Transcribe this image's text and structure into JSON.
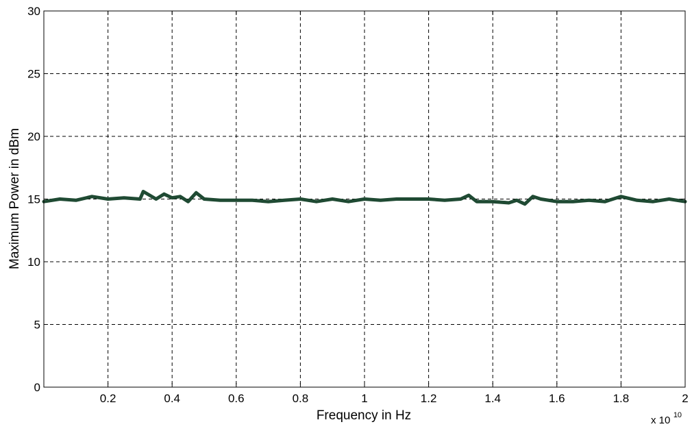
{
  "chart_data": {
    "type": "line",
    "title": "",
    "xlabel": "Frequency in Hz",
    "ylabel": "Maximum Power in dBm",
    "x_multiplier": {
      "base": "x 10",
      "exponent": "10"
    },
    "xlim": [
      0,
      20000000000
    ],
    "ylim": [
      0,
      30
    ],
    "x_tick_labels": [
      "0.2",
      "0.4",
      "0.6",
      "0.8",
      "1",
      "1.2",
      "1.4",
      "1.6",
      "1.8",
      "2"
    ],
    "y_tick_labels": [
      "0",
      "5",
      "10",
      "15",
      "20",
      "25",
      "30"
    ],
    "grid": true,
    "grid_style": "dashed",
    "legend": "none",
    "line_color": "#1f4a33",
    "series": [
      {
        "x": [
          0,
          500000000,
          1000000000,
          1500000000,
          2000000000,
          2500000000,
          3000000000,
          3100000000,
          3500000000,
          3750000000,
          4000000000,
          4250000000,
          4500000000,
          4750000000,
          5000000000,
          5500000000,
          6000000000,
          6500000000,
          7000000000,
          7500000000,
          8000000000,
          8500000000,
          9000000000,
          9500000000,
          10000000000,
          10500000000,
          11000000000,
          11500000000,
          12000000000,
          12500000000,
          13000000000,
          13250000000,
          13500000000,
          14000000000,
          14500000000,
          14750000000,
          15000000000,
          15250000000,
          15500000000,
          16000000000,
          16500000000,
          17000000000,
          17500000000,
          18000000000,
          18500000000,
          19000000000,
          19500000000,
          20000000000
        ],
        "y": [
          14.8,
          15.0,
          14.9,
          15.2,
          15.0,
          15.1,
          15.0,
          15.6,
          15.0,
          15.4,
          15.1,
          15.2,
          14.8,
          15.5,
          15.0,
          14.9,
          14.9,
          14.9,
          14.8,
          14.9,
          15.0,
          14.8,
          15.0,
          14.8,
          15.0,
          14.9,
          15.0,
          15.0,
          15.0,
          14.9,
          15.0,
          15.3,
          14.8,
          14.8,
          14.7,
          14.9,
          14.6,
          15.2,
          15.0,
          14.8,
          14.8,
          14.9,
          14.8,
          15.2,
          14.9,
          14.8,
          15.0,
          14.8
        ]
      }
    ]
  }
}
